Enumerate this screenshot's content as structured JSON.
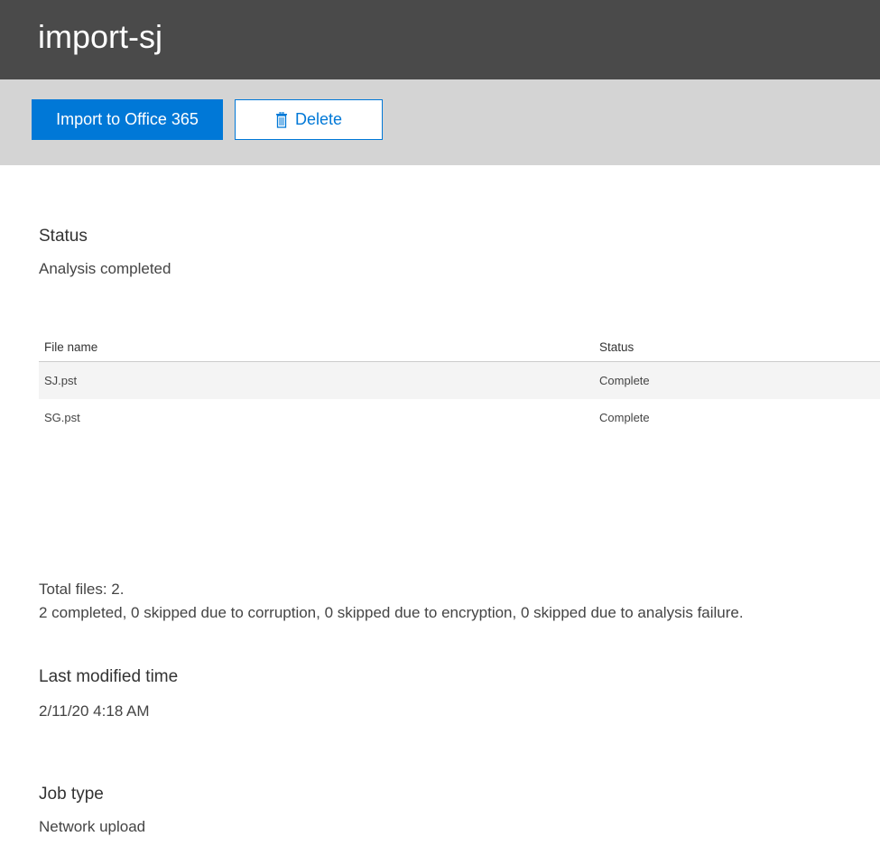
{
  "header": {
    "title": "import-sj"
  },
  "toolbar": {
    "import_label": "Import to Office 365",
    "delete_label": "Delete"
  },
  "status": {
    "label": "Status",
    "value": "Analysis completed"
  },
  "table": {
    "columns": [
      "File name",
      "Status"
    ],
    "rows": [
      [
        "SJ.pst",
        "Complete"
      ],
      [
        "SG.pst",
        "Complete"
      ]
    ]
  },
  "summary": {
    "total": "Total files: 2.",
    "detail": "2 completed, 0 skipped due to corruption, 0 skipped due to encryption, 0 skipped due to analysis failure."
  },
  "last_modified": {
    "label": "Last modified time",
    "value": "2/11/20 4:18 AM"
  },
  "job_type": {
    "label": "Job type",
    "value": "Network upload"
  },
  "colors": {
    "header_bg": "#4a4a4a",
    "toolbar_bg": "#d4d4d4",
    "accent": "#0078d7"
  }
}
